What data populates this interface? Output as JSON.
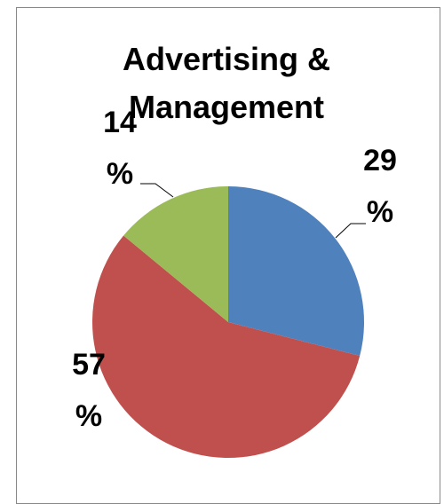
{
  "chart_data": {
    "type": "pie",
    "title": "Advertising & Management",
    "values": [
      29,
      57,
      14
    ],
    "value_labels": [
      "29 %",
      "57 %",
      "14 %"
    ],
    "colors": [
      "#4f81bd",
      "#c0504d",
      "#9bbb59"
    ]
  }
}
